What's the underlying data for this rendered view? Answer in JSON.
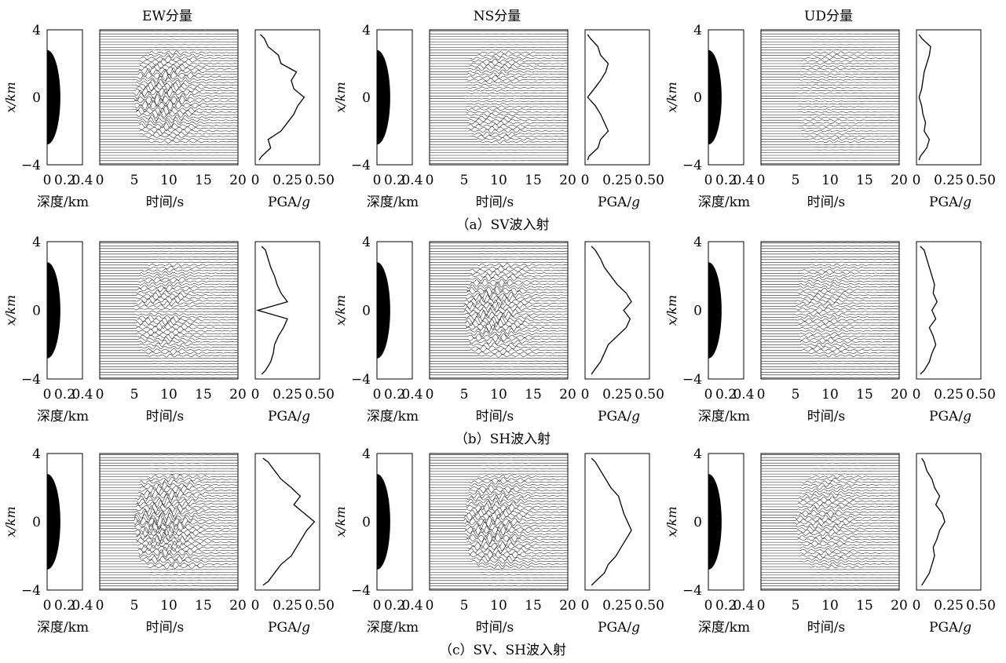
{
  "columns": [
    {
      "title": "EW分量"
    },
    {
      "title": "NS分量"
    },
    {
      "title": "UD分量"
    }
  ],
  "rows": [
    {
      "caption": "（a）SV波入射"
    },
    {
      "caption": "（b）SH波入射"
    },
    {
      "caption": "（c）SV、SH波入射"
    }
  ],
  "axes": {
    "y_label": "x/km",
    "y_ticks": [
      "4",
      "0",
      "−4"
    ],
    "depth_label": "深度/km",
    "depth_ticks": [
      "0",
      "0.2",
      "0.4"
    ],
    "time_label": "时间/s",
    "time_ticks": [
      "0",
      "5",
      "10",
      "15",
      "20"
    ],
    "pga_label_prefix": "PGA/",
    "pga_label_var": "g",
    "pga_ticks": [
      "0",
      "0.25",
      "0.50"
    ]
  },
  "chart_data": {
    "type": "line",
    "x_positions_km": [
      -4,
      -3.5,
      -3,
      -2.5,
      -2,
      -1.5,
      -1,
      -0.5,
      0,
      0.5,
      1,
      1.5,
      2,
      2.5,
      3,
      3.5,
      4
    ],
    "basin_half_width_km": 2.8,
    "basin_max_depth_km": 0.15,
    "depth_range_km": [
      0,
      0.4
    ],
    "time_range_s": [
      0,
      20
    ],
    "pga_range_g": [
      0,
      0.5
    ],
    "panels": [
      {
        "row": "a",
        "component": "EW",
        "pga": [
          0.03,
          0.05,
          0.12,
          0.1,
          0.2,
          0.25,
          0.3,
          0.33,
          0.38,
          0.3,
          0.28,
          0.32,
          0.2,
          0.18,
          0.1,
          0.07,
          0.04
        ]
      },
      {
        "row": "a",
        "component": "NS",
        "pga": [
          0.02,
          0.03,
          0.1,
          0.12,
          0.18,
          0.15,
          0.12,
          0.08,
          0.02,
          0.07,
          0.12,
          0.16,
          0.18,
          0.12,
          0.1,
          0.04,
          0.02
        ]
      },
      {
        "row": "a",
        "component": "UD",
        "pga": [
          0.02,
          0.03,
          0.08,
          0.1,
          0.06,
          0.07,
          0.05,
          0.04,
          0.02,
          0.04,
          0.05,
          0.06,
          0.08,
          0.1,
          0.11,
          0.04,
          0.02
        ]
      },
      {
        "row": "b",
        "component": "EW",
        "pga": [
          0.05,
          0.08,
          0.12,
          0.14,
          0.15,
          0.18,
          0.22,
          0.25,
          0.02,
          0.25,
          0.2,
          0.17,
          0.15,
          0.12,
          0.1,
          0.08,
          0.05
        ]
      },
      {
        "row": "b",
        "component": "NS",
        "pga": [
          0.05,
          0.07,
          0.12,
          0.15,
          0.18,
          0.25,
          0.32,
          0.35,
          0.3,
          0.36,
          0.32,
          0.25,
          0.2,
          0.15,
          0.12,
          0.08,
          0.05
        ]
      },
      {
        "row": "b",
        "component": "UD",
        "pga": [
          0.03,
          0.06,
          0.1,
          0.12,
          0.15,
          0.13,
          0.1,
          0.15,
          0.12,
          0.16,
          0.13,
          0.14,
          0.12,
          0.1,
          0.08,
          0.06,
          0.03
        ]
      },
      {
        "row": "c",
        "component": "EW",
        "pga": [
          0.06,
          0.1,
          0.15,
          0.2,
          0.28,
          0.32,
          0.36,
          0.4,
          0.46,
          0.38,
          0.3,
          0.35,
          0.28,
          0.2,
          0.15,
          0.1,
          0.06
        ]
      },
      {
        "row": "c",
        "component": "NS",
        "pga": [
          0.05,
          0.08,
          0.15,
          0.18,
          0.24,
          0.28,
          0.32,
          0.36,
          0.33,
          0.3,
          0.28,
          0.26,
          0.2,
          0.16,
          0.12,
          0.08,
          0.05
        ]
      },
      {
        "row": "c",
        "component": "UD",
        "pga": [
          0.04,
          0.06,
          0.1,
          0.12,
          0.14,
          0.13,
          0.16,
          0.18,
          0.22,
          0.2,
          0.15,
          0.18,
          0.14,
          0.12,
          0.08,
          0.06,
          0.04
        ]
      }
    ]
  }
}
